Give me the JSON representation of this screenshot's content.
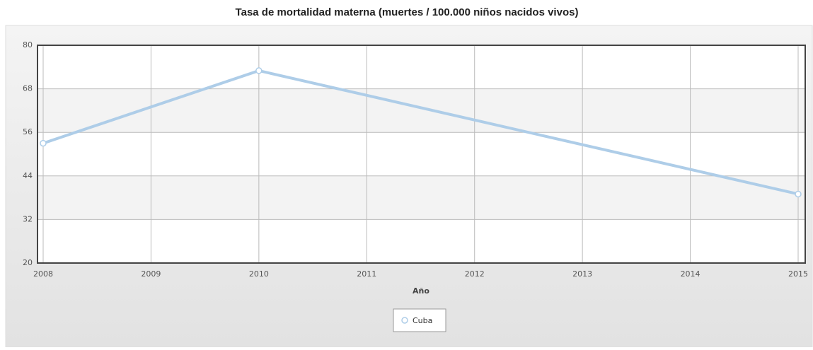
{
  "chart_data": {
    "type": "line",
    "title": "Tasa de mortalidad materna (muertes / 100.000 niños nacidos vivos)",
    "x_label": "Año",
    "x": [
      2008,
      2010,
      2015
    ],
    "series": [
      {
        "name": "Cuba",
        "color": "#aecde8",
        "values": [
          53,
          73,
          39
        ]
      }
    ],
    "xlim": [
      2008,
      2015
    ],
    "xticks": [
      2008,
      2009,
      2010,
      2011,
      2012,
      2013,
      2014,
      2015
    ],
    "ylim": [
      20,
      80
    ],
    "yticks": [
      20,
      32,
      44,
      56,
      68,
      80
    ],
    "grid": true,
    "legend": "bottom"
  }
}
